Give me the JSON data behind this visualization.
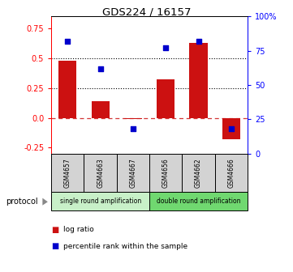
{
  "title": "GDS224 / 16157",
  "samples": [
    "GSM4657",
    "GSM4663",
    "GSM4667",
    "GSM4656",
    "GSM4662",
    "GSM4666"
  ],
  "log_ratio": [
    0.48,
    0.14,
    -0.01,
    0.32,
    0.63,
    -0.18
  ],
  "percentile_rank": [
    82,
    62,
    18,
    77,
    82,
    18
  ],
  "protocol_groups": [
    {
      "label": "single round amplification",
      "start": 0,
      "end": 3,
      "color": "#c8f0c8"
    },
    {
      "label": "double round amplification",
      "start": 3,
      "end": 6,
      "color": "#70d870"
    }
  ],
  "bar_color": "#cc1111",
  "dot_color": "#0000cc",
  "ylim_left": [
    -0.3,
    0.85
  ],
  "ylim_right": [
    0,
    100
  ],
  "yticks_left": [
    -0.25,
    0.0,
    0.25,
    0.5,
    0.75
  ],
  "yticks_right": [
    0,
    25,
    50,
    75,
    100
  ],
  "hline_y": [
    0.25,
    0.5
  ],
  "zero_line_y": 0.0,
  "legend_items": [
    {
      "label": "log ratio",
      "color": "#cc1111"
    },
    {
      "label": "percentile rank within the sample",
      "color": "#0000cc"
    }
  ]
}
